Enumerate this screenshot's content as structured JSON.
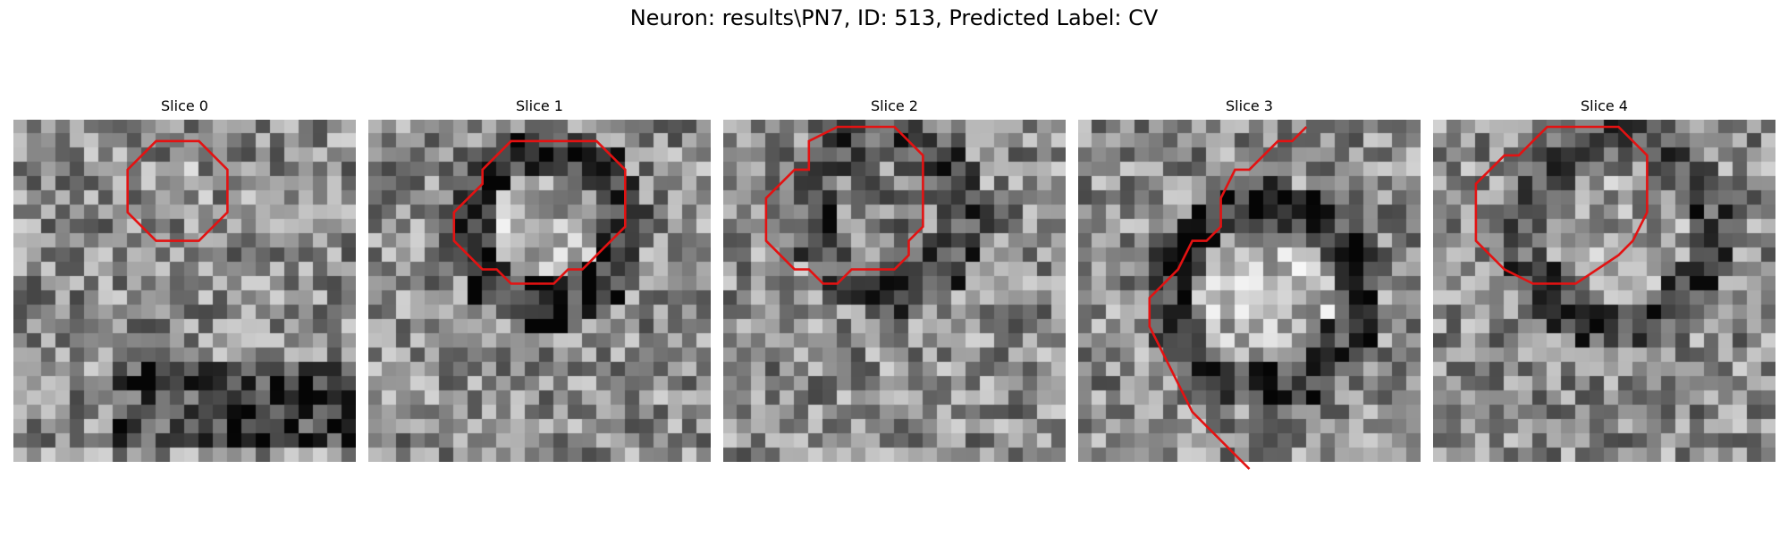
{
  "figure": {
    "title": "Neuron: results\\PN7, ID: 513, Predicted Label: CV",
    "contour_color": "#e31212",
    "colormap": "gray"
  },
  "panels": [
    {
      "title": "Slice 0",
      "contour": [
        [
          10,
          1
        ],
        [
          13,
          1
        ],
        [
          15,
          3
        ],
        [
          15,
          6
        ],
        [
          13,
          8
        ],
        [
          10,
          8
        ],
        [
          8,
          6
        ],
        [
          8,
          3
        ]
      ],
      "closed": true
    },
    {
      "title": "Slice 1",
      "contour": [
        [
          11,
          1
        ],
        [
          16,
          1
        ],
        [
          18,
          3
        ],
        [
          18,
          7
        ],
        [
          15,
          10
        ],
        [
          14,
          10
        ],
        [
          13,
          11
        ],
        [
          10,
          11
        ],
        [
          9,
          10
        ],
        [
          8,
          10
        ],
        [
          6,
          8
        ],
        [
          6,
          6
        ],
        [
          8,
          4
        ],
        [
          8,
          3
        ],
        [
          10,
          1
        ]
      ],
      "closed": true
    },
    {
      "title": "Slice 2",
      "contour": [
        [
          8,
          0
        ],
        [
          12,
          0
        ],
        [
          14,
          2
        ],
        [
          14,
          7
        ],
        [
          13,
          8
        ],
        [
          13,
          9
        ],
        [
          12,
          10
        ],
        [
          9,
          10
        ],
        [
          8,
          11
        ],
        [
          7,
          11
        ],
        [
          6,
          10
        ],
        [
          5,
          10
        ],
        [
          3,
          8
        ],
        [
          3,
          5
        ],
        [
          5,
          3
        ],
        [
          6,
          3
        ],
        [
          6,
          1
        ]
      ],
      "closed": true
    },
    {
      "title": "Slice 3",
      "contour": [
        [
          7,
          -9
        ],
        [
          6,
          -8
        ],
        [
          5,
          -8
        ],
        [
          3,
          -6
        ],
        [
          2,
          -6
        ],
        [
          1,
          -4
        ],
        [
          1,
          -2
        ],
        [
          0,
          -1
        ],
        [
          -1,
          -1
        ],
        [
          -2,
          1
        ],
        [
          -3,
          2
        ],
        [
          -4,
          3
        ],
        [
          -4,
          5
        ],
        [
          -3,
          7
        ],
        [
          -2,
          9
        ],
        [
          -1,
          11
        ],
        [
          0,
          12
        ],
        [
          1,
          13
        ],
        [
          3,
          15
        ]
      ],
      "closed": false
    },
    {
      "title": "Slice 4",
      "contour": [
        [
          8,
          0
        ],
        [
          13,
          0
        ],
        [
          15,
          2
        ],
        [
          15,
          6
        ],
        [
          14,
          8
        ],
        [
          13,
          9
        ],
        [
          10,
          11
        ],
        [
          7,
          11
        ],
        [
          5,
          10
        ],
        [
          3,
          8
        ],
        [
          3,
          4
        ],
        [
          5,
          2
        ],
        [
          6,
          2
        ],
        [
          7,
          1
        ]
      ],
      "closed": true
    }
  ]
}
